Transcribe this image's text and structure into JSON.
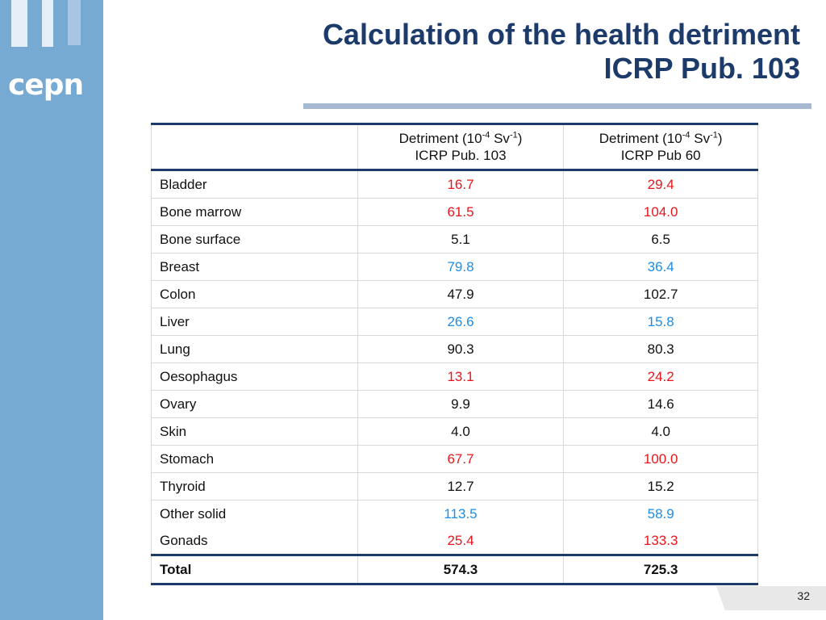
{
  "logo": {
    "text": "cepn"
  },
  "title": {
    "line1": "Calculation of the health detriment",
    "line2": "ICRP Pub. 103"
  },
  "table": {
    "header": {
      "col1": {
        "prefix": "Detriment  (10",
        "exp1": "-4",
        "mid": " Sv",
        "exp2": "-1",
        "suffix": ")",
        "line2": "ICRP Pub. 103"
      },
      "col2": {
        "prefix": "Detriment  (10",
        "exp1": "-4",
        "mid": " Sv",
        "exp2": "-1",
        "suffix": ")",
        "line2": "ICRP Pub 60"
      }
    },
    "rows": [
      {
        "organ": "Bladder",
        "pub103": "16.7",
        "pub60": "29.4",
        "color": "#e8161c"
      },
      {
        "organ": "Bone marrow",
        "pub103": "61.5",
        "pub60": "104.0",
        "color": "#e8161c"
      },
      {
        "organ": "Bone surface",
        "pub103": "5.1",
        "pub60": "6.5",
        "color": "#111111"
      },
      {
        "organ": "Breast",
        "pub103": "79.8",
        "pub60": "36.4",
        "color": "#1d8de6"
      },
      {
        "organ": "Colon",
        "pub103": "47.9",
        "pub60": "102.7",
        "color": "#111111"
      },
      {
        "organ": "Liver",
        "pub103": "26.6",
        "pub60": "15.8",
        "color": "#1d8de6"
      },
      {
        "organ": "Lung",
        "pub103": "90.3",
        "pub60": "80.3",
        "color": "#111111"
      },
      {
        "organ": "Oesophagus",
        "pub103": "13.1",
        "pub60": "24.2",
        "color": "#e8161c"
      },
      {
        "organ": "Ovary",
        "pub103": "9.9",
        "pub60": "14.6",
        "color": "#111111"
      },
      {
        "organ": "Skin",
        "pub103": "4.0",
        "pub60": "4.0",
        "color": "#111111"
      },
      {
        "organ": "Stomach",
        "pub103": "67.7",
        "pub60": "100.0",
        "color": "#e8161c"
      },
      {
        "organ": "Thyroid",
        "pub103": "12.7",
        "pub60": "15.2",
        "color": "#111111"
      },
      {
        "organ": "Other solid",
        "pub103": "113.5",
        "pub60": "58.9",
        "color": "#1d8de6"
      },
      {
        "organ": "Gonads",
        "pub103": "25.4",
        "pub60": "133.3",
        "color": "#e8161c"
      }
    ],
    "total": {
      "label": "Total",
      "pub103": "574.3",
      "pub60": "725.3"
    }
  },
  "page_number": "32"
}
